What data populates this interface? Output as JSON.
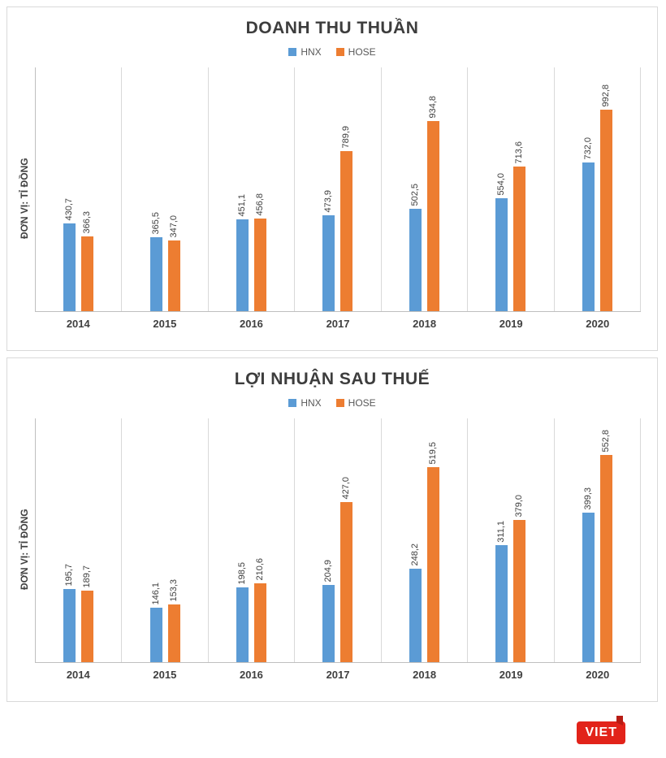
{
  "chart_data": [
    {
      "type": "bar",
      "title": "DOANH THU THUẦN",
      "ylabel": "ĐƠN VỊ: TỈ ĐỒNG",
      "legend_position": "top-center",
      "grid": "category-separators",
      "ylim": [
        0,
        1200
      ],
      "categories": [
        "2014",
        "2015",
        "2016",
        "2017",
        "2018",
        "2019",
        "2020"
      ],
      "series": [
        {
          "name": "HNX",
          "color": "#5B9BD5",
          "values": [
            430.7,
            365.5,
            451.1,
            473.9,
            502.5,
            554.0,
            732.0
          ],
          "labels": [
            "430,7",
            "365,5",
            "451,1",
            "473,9",
            "502,5",
            "554,0",
            "732,0"
          ]
        },
        {
          "name": "HOSE",
          "color": "#ED7D31",
          "values": [
            366.3,
            347.0,
            456.8,
            789.9,
            934.8,
            713.6,
            992.8
          ],
          "labels": [
            "366,3",
            "347,0",
            "456,8",
            "789,9",
            "934,8",
            "713,6",
            "992,8"
          ]
        }
      ]
    },
    {
      "type": "bar",
      "title": "LỢI NHUẬN SAU THUẾ",
      "ylabel": "ĐƠN VỊ: TỈ ĐỒNG",
      "legend_position": "top-center",
      "grid": "category-separators",
      "ylim": [
        0,
        650
      ],
      "categories": [
        "2014",
        "2015",
        "2016",
        "2017",
        "2018",
        "2019",
        "2020"
      ],
      "series": [
        {
          "name": "HNX",
          "color": "#5B9BD5",
          "values": [
            195.7,
            146.1,
            198.5,
            204.9,
            248.2,
            311.1,
            399.3
          ],
          "labels": [
            "195,7",
            "146,1",
            "198,5",
            "204,9",
            "248,2",
            "311,1",
            "399,3"
          ]
        },
        {
          "name": "HOSE",
          "color": "#ED7D31",
          "values": [
            189.7,
            153.3,
            210.6,
            427.0,
            519.5,
            379.0,
            552.8
          ],
          "labels": [
            "189,7",
            "153,3",
            "210,6",
            "427,0",
            "519,5",
            "379,0",
            "552,8"
          ]
        }
      ]
    }
  ],
  "footer": {
    "logo_text": "VIET"
  }
}
